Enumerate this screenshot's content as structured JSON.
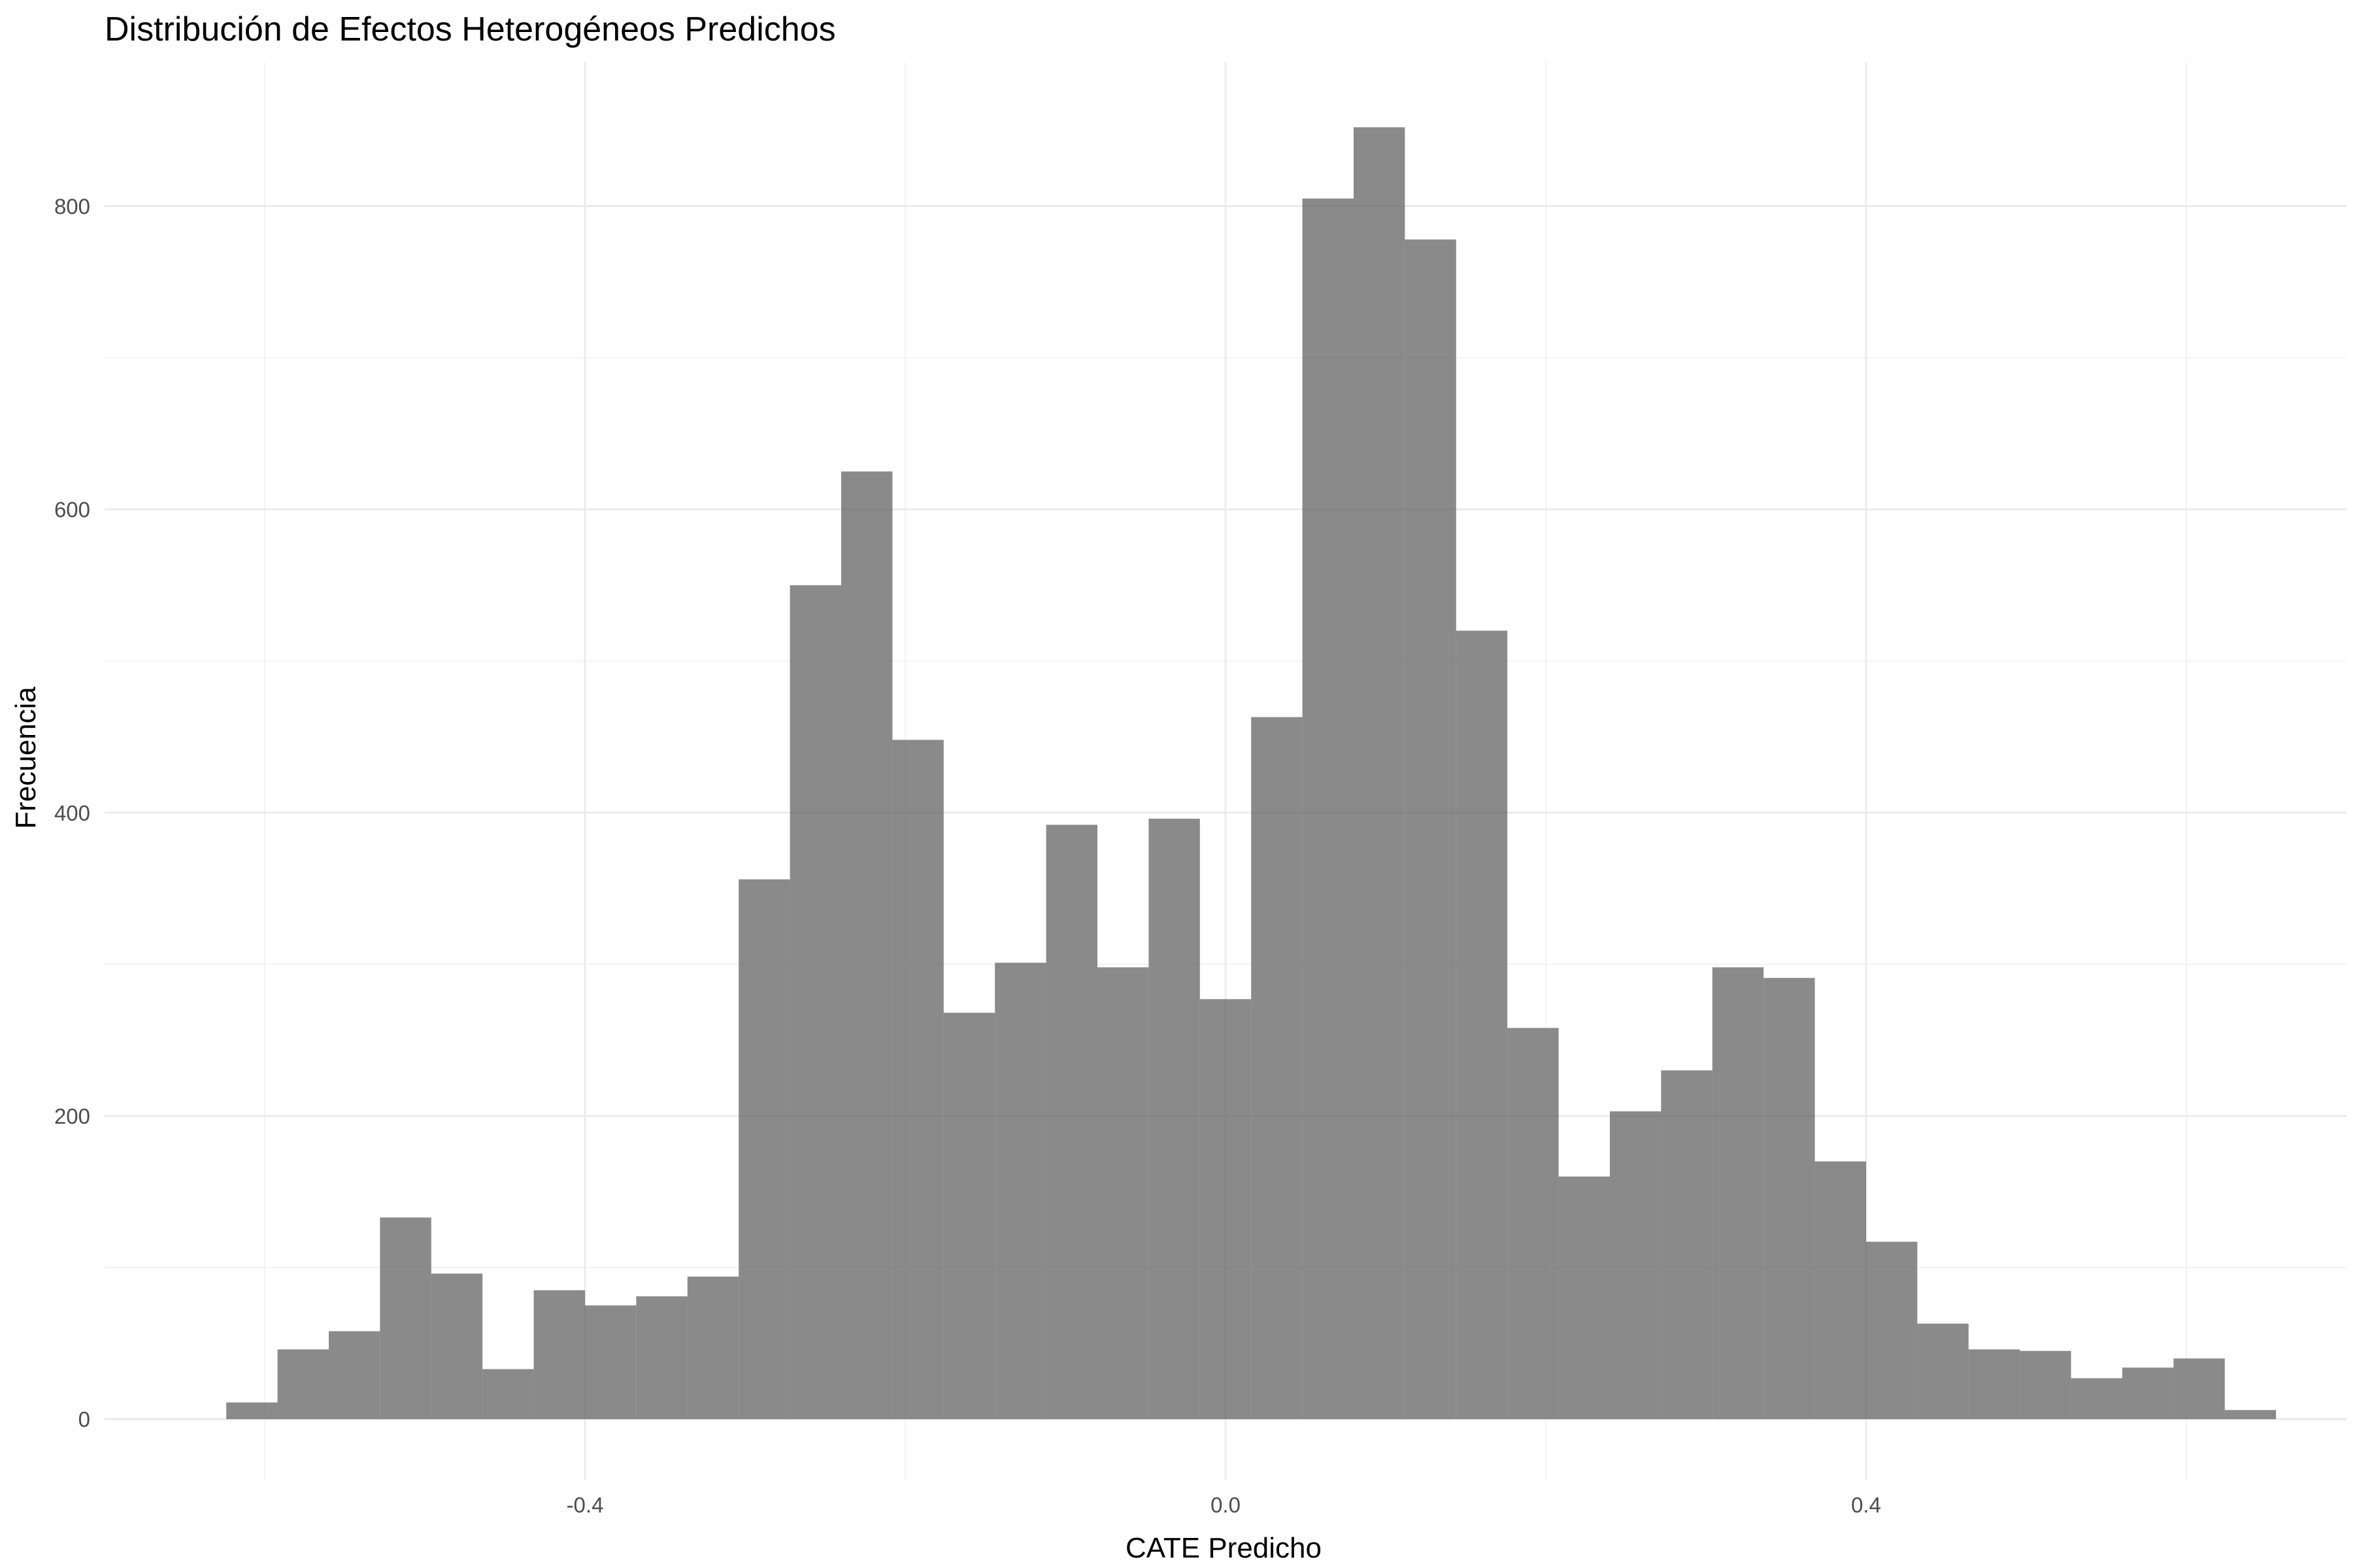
{
  "chart_data": {
    "type": "bar",
    "title": "Distribución de Efectos Heterogéneos Predichos",
    "xlabel": "CATE Predicho",
    "ylabel": "Frecuencia",
    "xlim": [
      -0.7,
      0.7
    ],
    "ylim": [
      -40,
      895
    ],
    "x_ticks": [
      -0.4,
      0.0,
      0.4
    ],
    "x_tick_labels": [
      "-0.4",
      "0.0",
      "0.4"
    ],
    "y_ticks": [
      0,
      200,
      400,
      600,
      800
    ],
    "y_tick_labels": [
      "0",
      "200",
      "400",
      "600",
      "800"
    ],
    "grid": true,
    "bin_width": 0.032,
    "bin_starts": [
      -0.624,
      -0.592,
      -0.56,
      -0.528,
      -0.496,
      -0.464,
      -0.432,
      -0.4,
      -0.368,
      -0.336,
      -0.304,
      -0.272,
      -0.24,
      -0.208,
      -0.176,
      -0.144,
      -0.112,
      -0.08,
      -0.048,
      -0.016,
      0.016,
      0.048,
      0.08,
      0.112,
      0.144,
      0.176,
      0.208,
      0.24,
      0.272,
      0.304,
      0.336,
      0.368,
      0.4,
      0.432,
      0.464,
      0.496,
      0.528,
      0.56,
      0.592,
      0.624
    ],
    "values": [
      11,
      46,
      58,
      133,
      96,
      33,
      85,
      75,
      81,
      94,
      356,
      550,
      625,
      448,
      268,
      301,
      392,
      298,
      396,
      277,
      463,
      805,
      852,
      778,
      520,
      258,
      160,
      203,
      230,
      298,
      291,
      170,
      117,
      63,
      46,
      45,
      27,
      34,
      40,
      6
    ],
    "colors": {
      "bar": "#595959",
      "bar_opacity": 0.7,
      "background": "#ffffff"
    }
  }
}
